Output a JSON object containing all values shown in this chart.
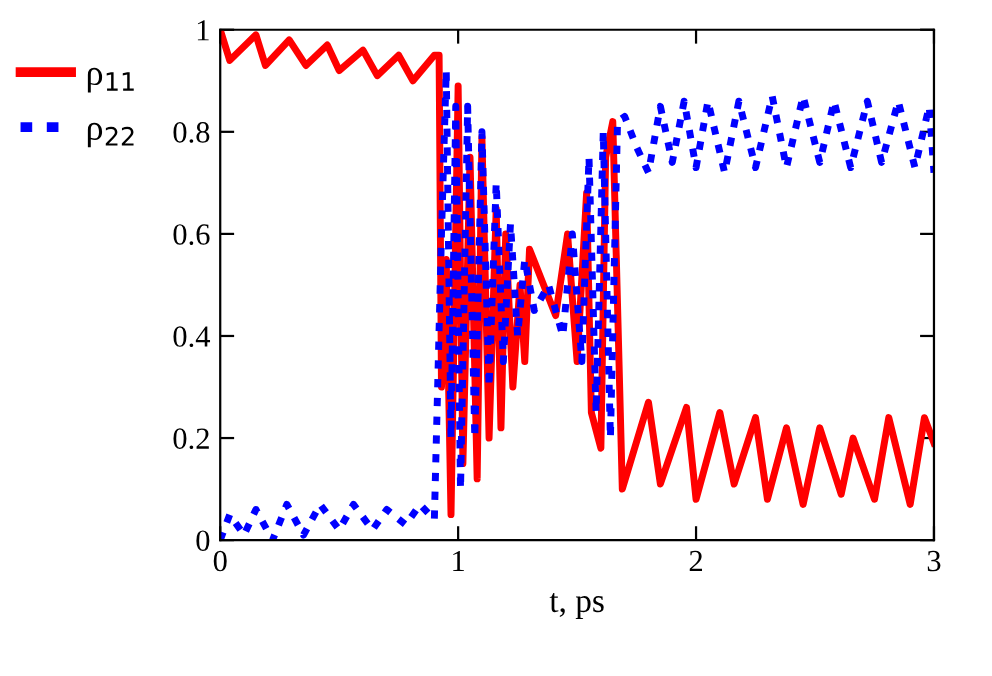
{
  "chart_data": {
    "type": "line",
    "xlabel": "t, ps",
    "xlim": [
      0,
      3
    ],
    "ylim": [
      0,
      1
    ],
    "xticks": [
      0,
      1,
      2,
      3
    ],
    "yticks": [
      0,
      0.2,
      0.4,
      0.6,
      0.8,
      1
    ],
    "grid": false,
    "legend": "left",
    "marker": "none",
    "series": [
      {
        "name": "ρ$_{11}$",
        "color": "#ff0000",
        "line_style": "solid",
        "x": [
          0,
          0.04,
          0.15,
          0.19,
          0.29,
          0.36,
          0.45,
          0.5,
          0.6,
          0.66,
          0.75,
          0.81,
          0.9,
          0.92,
          0.93,
          0.95,
          0.97,
          1.0,
          1.02,
          1.05,
          1.08,
          1.1,
          1.13,
          1.16,
          1.18,
          1.2,
          1.23,
          1.26,
          1.28,
          1.3,
          1.41,
          1.46,
          1.5,
          1.54,
          1.56,
          1.6,
          1.62,
          1.65,
          1.69,
          1.8,
          1.85,
          1.96,
          2.0,
          2.1,
          2.16,
          2.25,
          2.3,
          2.38,
          2.45,
          2.52,
          2.61,
          2.66,
          2.75,
          2.81,
          2.9,
          2.96,
          3.0
        ],
        "values": [
          1.0,
          0.94,
          0.99,
          0.93,
          0.98,
          0.93,
          0.97,
          0.92,
          0.96,
          0.91,
          0.95,
          0.9,
          0.95,
          0.95,
          0.3,
          0.55,
          0.05,
          0.89,
          0.15,
          0.75,
          0.12,
          0.79,
          0.2,
          0.65,
          0.22,
          0.6,
          0.3,
          0.5,
          0.35,
          0.57,
          0.44,
          0.6,
          0.35,
          0.68,
          0.25,
          0.18,
          0.75,
          0.82,
          0.1,
          0.27,
          0.11,
          0.26,
          0.08,
          0.25,
          0.11,
          0.24,
          0.08,
          0.22,
          0.07,
          0.22,
          0.09,
          0.2,
          0.08,
          0.24,
          0.07,
          0.24,
          0.19
        ]
      },
      {
        "name": "ρ$_{22}$",
        "color": "#0000ff",
        "line_style": "dotted",
        "x": [
          0,
          0.04,
          0.1,
          0.15,
          0.22,
          0.28,
          0.35,
          0.42,
          0.5,
          0.56,
          0.64,
          0.7,
          0.78,
          0.84,
          0.9,
          0.93,
          0.95,
          0.97,
          0.99,
          1.01,
          1.04,
          1.07,
          1.1,
          1.13,
          1.16,
          1.19,
          1.22,
          1.25,
          1.28,
          1.32,
          1.38,
          1.44,
          1.48,
          1.52,
          1.55,
          1.58,
          1.61,
          1.64,
          1.67,
          1.7,
          1.75,
          1.8,
          1.85,
          1.9,
          1.95,
          2.0,
          2.05,
          2.12,
          2.18,
          2.25,
          2.32,
          2.38,
          2.45,
          2.52,
          2.58,
          2.65,
          2.72,
          2.78,
          2.85,
          2.92,
          2.98,
          3.0
        ],
        "values": [
          0.0,
          0.05,
          0.01,
          0.06,
          0.0,
          0.07,
          0.01,
          0.07,
          0.02,
          0.07,
          0.02,
          0.06,
          0.03,
          0.07,
          0.04,
          0.6,
          0.92,
          0.2,
          0.85,
          0.1,
          0.85,
          0.2,
          0.8,
          0.3,
          0.7,
          0.35,
          0.62,
          0.4,
          0.55,
          0.45,
          0.5,
          0.4,
          0.6,
          0.35,
          0.75,
          0.25,
          0.8,
          0.2,
          0.82,
          0.83,
          0.77,
          0.72,
          0.85,
          0.74,
          0.86,
          0.73,
          0.86,
          0.72,
          0.86,
          0.73,
          0.87,
          0.73,
          0.87,
          0.74,
          0.86,
          0.73,
          0.86,
          0.74,
          0.86,
          0.73,
          0.85,
          0.72
        ]
      }
    ]
  }
}
